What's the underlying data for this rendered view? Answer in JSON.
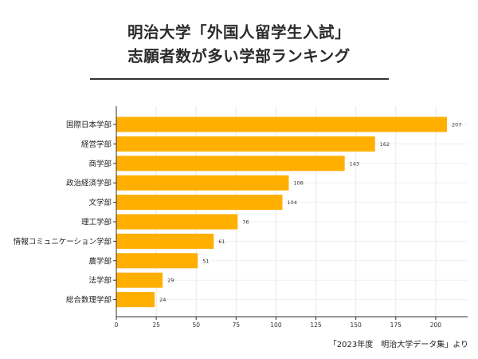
{
  "header": {
    "title_line1": "明治大学「外国人留学生入試」",
    "title_line2": "志願者数が多い学部ランキング"
  },
  "chart_data": {
    "type": "bar",
    "orientation": "horizontal",
    "categories": [
      "国際日本学部",
      "経営学部",
      "商学部",
      "政治経済学部",
      "文学部",
      "理工学部",
      "情報コミュニケーション学部",
      "農学部",
      "法学部",
      "総合数理学部"
    ],
    "values": [
      207,
      162,
      143,
      108,
      104,
      76,
      61,
      51,
      29,
      24
    ],
    "xlim": [
      0,
      220
    ],
    "xticks": [
      0,
      25,
      50,
      75,
      100,
      125,
      150,
      175,
      200
    ],
    "bar_color": "#FFAF00",
    "grid": true,
    "data_labels": true
  },
  "footer": {
    "source": "「2023年度　明治大学データ集」より"
  }
}
